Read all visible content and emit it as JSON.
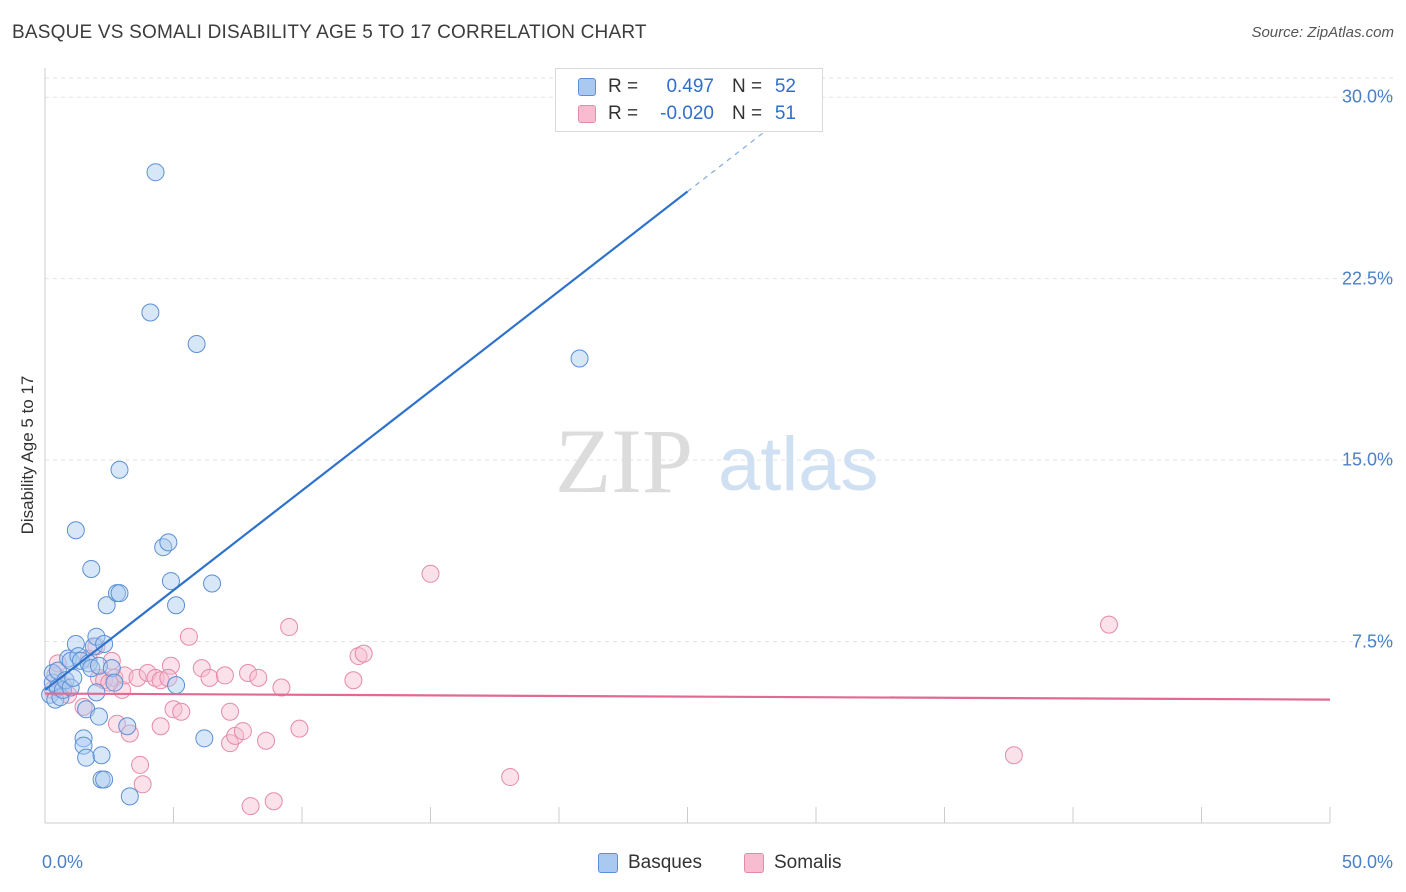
{
  "header": {
    "title": "BASQUE VS SOMALI DISABILITY AGE 5 TO 17 CORRELATION CHART",
    "source": "Source: ZipAtlas.com"
  },
  "watermark": {
    "zip": "ZIP",
    "atlas": "atlas"
  },
  "legend": {
    "rows": [
      {
        "r_label": "R =",
        "r_value": "0.497",
        "n_label": "N =",
        "n_value": "52"
      },
      {
        "r_label": "R =",
        "r_value": "-0.020",
        "n_label": "N =",
        "n_value": "51"
      }
    ]
  },
  "bottom_legend": {
    "basques": "Basques",
    "somalis": "Somalis"
  },
  "axes": {
    "ylabel": "Disability Age 5 to 17",
    "yticks": [
      "30.0%",
      "22.5%",
      "15.0%",
      "7.5%"
    ],
    "xticks": [
      "0.0%",
      "50.0%"
    ]
  },
  "colors": {
    "basques_fill": "#a9c9f0",
    "basques_stroke": "#5b8fd6",
    "basques_line": "#2f72cc",
    "somalis_fill": "#f7bcd0",
    "somalis_stroke": "#e58aaa",
    "somalis_line": "#e06a94",
    "tick_label": "#4a80c8"
  },
  "chart_data": {
    "type": "scatter",
    "xlabel": "",
    "ylabel": "Disability Age 5 to 17",
    "xlim": [
      0,
      50
    ],
    "ylim": [
      0,
      31
    ],
    "grid": true,
    "series": [
      {
        "name": "Basques",
        "points": [
          [
            0.2,
            5.3
          ],
          [
            0.3,
            5.8
          ],
          [
            0.3,
            6.2
          ],
          [
            0.4,
            5.1
          ],
          [
            0.5,
            5.6
          ],
          [
            0.5,
            6.3
          ],
          [
            0.6,
            5.2
          ],
          [
            0.7,
            5.5
          ],
          [
            0.8,
            5.9
          ],
          [
            0.9,
            6.8
          ],
          [
            1.0,
            6.7
          ],
          [
            1.0,
            5.6
          ],
          [
            1.1,
            6.0
          ],
          [
            1.2,
            7.4
          ],
          [
            1.2,
            12.1
          ],
          [
            1.3,
            6.9
          ],
          [
            1.4,
            6.7
          ],
          [
            1.5,
            3.5
          ],
          [
            1.5,
            3.2
          ],
          [
            1.6,
            2.7
          ],
          [
            1.6,
            4.7
          ],
          [
            1.7,
            6.6
          ],
          [
            1.8,
            6.4
          ],
          [
            1.8,
            10.5
          ],
          [
            1.9,
            7.3
          ],
          [
            2.0,
            5.4
          ],
          [
            2.0,
            7.7
          ],
          [
            2.1,
            6.5
          ],
          [
            2.1,
            4.4
          ],
          [
            2.2,
            2.8
          ],
          [
            2.2,
            1.8
          ],
          [
            2.3,
            1.8
          ],
          [
            2.3,
            7.4
          ],
          [
            2.4,
            9.0
          ],
          [
            2.6,
            6.4
          ],
          [
            2.7,
            5.8
          ],
          [
            2.8,
            9.5
          ],
          [
            2.9,
            9.5
          ],
          [
            2.9,
            14.6
          ],
          [
            3.2,
            4.0
          ],
          [
            3.3,
            1.1
          ],
          [
            4.1,
            21.1
          ],
          [
            4.3,
            26.9
          ],
          [
            4.6,
            11.4
          ],
          [
            4.8,
            11.6
          ],
          [
            4.9,
            10.0
          ],
          [
            5.1,
            9.0
          ],
          [
            5.1,
            5.7
          ],
          [
            5.9,
            19.8
          ],
          [
            6.2,
            3.5
          ],
          [
            6.5,
            9.9
          ],
          [
            20.8,
            19.2
          ]
        ]
      },
      {
        "name": "Somalis",
        "points": [
          [
            0.3,
            5.5
          ],
          [
            0.4,
            6.1
          ],
          [
            0.5,
            6.6
          ],
          [
            0.7,
            5.7
          ],
          [
            0.9,
            5.3
          ],
          [
            1.5,
            4.8
          ],
          [
            1.7,
            6.8
          ],
          [
            2.0,
            7.3
          ],
          [
            2.1,
            6.0
          ],
          [
            2.3,
            5.9
          ],
          [
            2.6,
            6.7
          ],
          [
            2.7,
            6.0
          ],
          [
            2.8,
            4.1
          ],
          [
            3.0,
            5.5
          ],
          [
            3.1,
            6.1
          ],
          [
            3.3,
            3.7
          ],
          [
            3.6,
            6.0
          ],
          [
            3.7,
            2.4
          ],
          [
            3.8,
            1.6
          ],
          [
            4.0,
            6.2
          ],
          [
            4.3,
            6.0
          ],
          [
            4.5,
            5.9
          ],
          [
            4.5,
            4.0
          ],
          [
            4.9,
            6.5
          ],
          [
            5.0,
            4.7
          ],
          [
            5.3,
            4.6
          ],
          [
            5.6,
            7.7
          ],
          [
            6.1,
            6.4
          ],
          [
            6.4,
            6.0
          ],
          [
            7.0,
            6.1
          ],
          [
            7.2,
            3.3
          ],
          [
            7.2,
            4.6
          ],
          [
            7.4,
            3.6
          ],
          [
            7.7,
            3.8
          ],
          [
            7.9,
            6.2
          ],
          [
            8.0,
            0.7
          ],
          [
            8.3,
            6.0
          ],
          [
            8.6,
            3.4
          ],
          [
            8.9,
            0.9
          ],
          [
            9.2,
            5.6
          ],
          [
            9.5,
            8.1
          ],
          [
            9.9,
            3.9
          ],
          [
            12.0,
            5.9
          ],
          [
            12.2,
            6.9
          ],
          [
            12.4,
            7.0
          ],
          [
            15.0,
            10.3
          ],
          [
            18.1,
            1.9
          ],
          [
            37.7,
            2.8
          ],
          [
            41.4,
            8.2
          ],
          [
            4.8,
            6.0
          ],
          [
            2.5,
            5.8
          ]
        ]
      }
    ],
    "trendlines": [
      {
        "name": "Basques",
        "x0": 0,
        "y0": 5.5,
        "x1": 25,
        "y1": 26.1,
        "dashed_to_x": 29
      },
      {
        "name": "Somalis",
        "x0": 0,
        "y0": 5.35,
        "x1": 50,
        "y1": 5.1
      }
    ]
  }
}
